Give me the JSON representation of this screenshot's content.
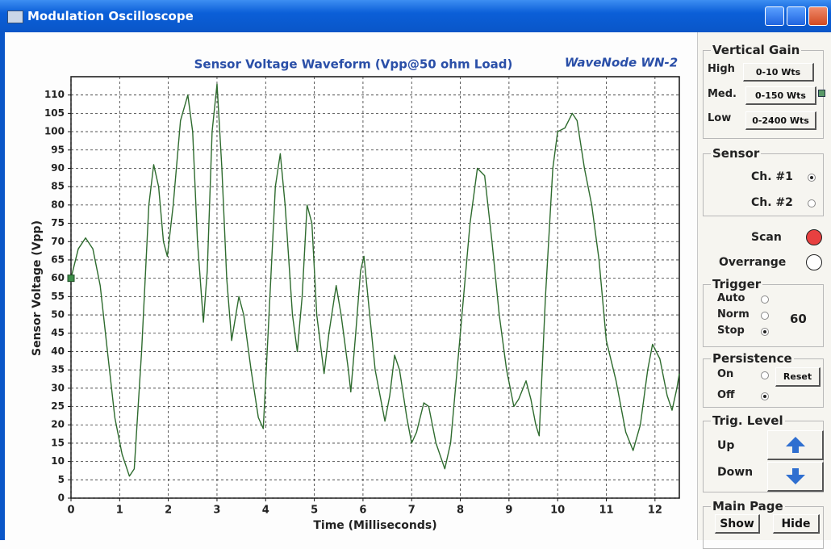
{
  "window": {
    "title": "Modulation Oscilloscope"
  },
  "chart_data": {
    "type": "line",
    "title": "Sensor Voltage Waveform (Vpp@50 ohm Load)",
    "brand": "WaveNode WN-2",
    "x_label": "Time (Milliseconds)",
    "y_label": "Sensor Voltage (Vpp)",
    "xlim": [
      0,
      12.5
    ],
    "xticks": [
      0,
      1,
      2,
      3,
      4,
      5,
      6,
      7,
      8,
      9,
      10,
      11,
      12
    ],
    "ylim": [
      0,
      115
    ],
    "yticks": [
      0,
      5,
      10,
      15,
      20,
      25,
      30,
      35,
      40,
      45,
      50,
      55,
      60,
      65,
      70,
      75,
      80,
      85,
      90,
      95,
      100,
      105,
      110
    ],
    "grid": true,
    "series": [
      {
        "name": "Sensor voltage",
        "color": "#2e6b2e",
        "x": [
          0,
          0.15,
          0.3,
          0.45,
          0.6,
          0.75,
          0.9,
          1.05,
          1.2,
          1.3,
          1.45,
          1.6,
          1.7,
          1.8,
          1.9,
          1.98,
          2.1,
          2.25,
          2.4,
          2.5,
          2.6,
          2.72,
          2.8,
          2.9,
          3.0,
          3.1,
          3.2,
          3.3,
          3.45,
          3.55,
          3.7,
          3.85,
          3.95,
          4.05,
          4.2,
          4.3,
          4.4,
          4.55,
          4.65,
          4.75,
          4.85,
          4.95,
          5.05,
          5.2,
          5.3,
          5.45,
          5.55,
          5.7,
          5.75,
          5.85,
          5.95,
          6.02,
          6.1,
          6.25,
          6.45,
          6.55,
          6.65,
          6.75,
          6.9,
          7.0,
          7.1,
          7.25,
          7.35,
          7.5,
          7.68,
          7.8,
          8.0,
          8.2,
          8.35,
          8.5,
          8.65,
          8.8,
          8.95,
          9.1,
          9.2,
          9.35,
          9.45,
          9.55,
          9.62,
          9.75,
          9.9,
          10.0,
          10.15,
          10.3,
          10.4,
          10.55,
          10.7,
          10.85,
          11.0,
          11.2,
          11.4,
          11.55,
          11.7,
          11.85,
          11.95,
          12.1,
          12.25,
          12.35,
          12.45,
          12.5
        ],
        "values": [
          60,
          68,
          71,
          68,
          58,
          40,
          22,
          12,
          6,
          8,
          40,
          80,
          91,
          85,
          70,
          66,
          80,
          103,
          110,
          100,
          70,
          48,
          62,
          100,
          113,
          90,
          60,
          43,
          55,
          50,
          35,
          22,
          19,
          45,
          85,
          94,
          80,
          50,
          40,
          55,
          80,
          75,
          50,
          34,
          45,
          58,
          50,
          35,
          29,
          45,
          62,
          66,
          55,
          35,
          21,
          28,
          39,
          35,
          22,
          15,
          18,
          26,
          25,
          15,
          8,
          15,
          45,
          75,
          90,
          88,
          70,
          50,
          35,
          25,
          27,
          32,
          27,
          20,
          17,
          55,
          90,
          100,
          101,
          105,
          103,
          90,
          80,
          65,
          43,
          32,
          18,
          13,
          20,
          35,
          42,
          38,
          28,
          24,
          30,
          34
        ]
      }
    ]
  },
  "panel": {
    "gain": {
      "title": "Vertical Gain",
      "rows": [
        {
          "label": "High",
          "button": "0-10 Wts"
        },
        {
          "label": "Med.",
          "button": "0-150 Wts"
        },
        {
          "label": "Low",
          "button": "0-2400 Wts"
        }
      ],
      "active": 1
    },
    "sensor": {
      "title": "Sensor",
      "options": [
        {
          "label": "Ch. #1",
          "selected": true
        },
        {
          "label": "Ch. #2",
          "selected": false
        }
      ]
    },
    "scan": "Scan",
    "overrange": "Overrange",
    "trigger": {
      "title": "Trigger",
      "options": [
        {
          "label": "Auto",
          "selected": false
        },
        {
          "label": "Norm",
          "selected": false
        },
        {
          "label": "Stop",
          "selected": true
        }
      ],
      "level": 60
    },
    "persistence": {
      "title": "Persistence",
      "options": [
        {
          "label": "On",
          "selected": false
        },
        {
          "label": "Off",
          "selected": true
        }
      ],
      "reset": "Reset"
    },
    "trig_level": {
      "title": "Trig. Level",
      "up": "Up",
      "down": "Down"
    },
    "main_page": {
      "title": "Main Page",
      "show": "Show",
      "hide": "Hide"
    }
  }
}
